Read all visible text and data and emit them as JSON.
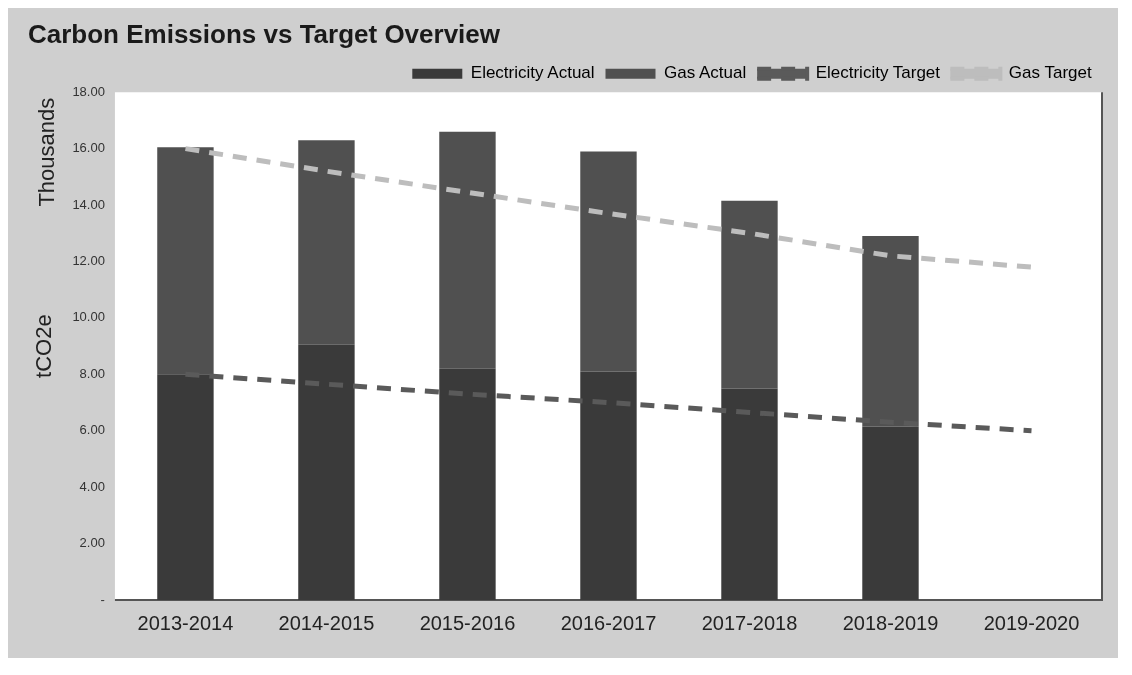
{
  "chart_data": {
    "type": "bar",
    "title": "Carbon Emissions vs Target Overview",
    "ylabel": "tCO2e",
    "annotations": [
      "Thousands"
    ],
    "categories": [
      "2013-2014",
      "2014-2015",
      "2015-2016",
      "2016-2017",
      "2017-2018",
      "2018-2019",
      "2019-2020"
    ],
    "stacked": true,
    "series": [
      {
        "name": "Electricity Actual",
        "color": "#3a3a3a",
        "values": [
          8.0,
          9.05,
          8.2,
          8.1,
          7.5,
          6.15,
          null
        ]
      },
      {
        "name": "Gas Actual",
        "color": "#505050",
        "values": [
          8.05,
          7.25,
          8.4,
          7.8,
          6.65,
          6.75,
          null
        ]
      },
      {
        "name": "Electricity Target",
        "type": "line",
        "color": "#5a5a5a",
        "line_style": "dashed",
        "values": [
          8.0,
          7.65,
          7.3,
          7.0,
          6.65,
          6.3,
          6.0
        ]
      },
      {
        "name": "Gas Target",
        "type": "line",
        "color": "#bdbdbd",
        "line_style": "dashed",
        "values": [
          16.0,
          15.2,
          14.45,
          13.7,
          13.0,
          12.2,
          11.8
        ]
      }
    ],
    "ylim": [
      0,
      18
    ],
    "yticks": [
      {
        "value": 0,
        "label": "-"
      },
      {
        "value": 2,
        "label": "2.00"
      },
      {
        "value": 4,
        "label": "4.00"
      },
      {
        "value": 6,
        "label": "6.00"
      },
      {
        "value": 8,
        "label": "8.00"
      },
      {
        "value": 10,
        "label": "10.00"
      },
      {
        "value": 12,
        "label": "12.00"
      },
      {
        "value": 14,
        "label": "14.00"
      },
      {
        "value": 16,
        "label": "16.00"
      },
      {
        "value": 18,
        "label": "18.00"
      }
    ],
    "grid": false,
    "legend": "top right",
    "marker": "none"
  }
}
